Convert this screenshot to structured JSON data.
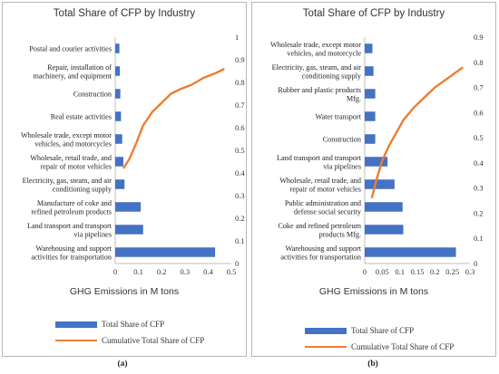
{
  "colors": {
    "bar": "#4472c4",
    "line": "#ed7d31",
    "grid": "#d9d9d9",
    "axis": "#bfbfbf"
  },
  "panels": [
    {
      "caption": "(a)",
      "legend": {
        "bar_label": "Total Share of CFP",
        "line_label": "Cumulative Total Share of CFP"
      },
      "chart_data": {
        "type": "bar",
        "orientation": "horizontal",
        "title": "Total Share of CFP by Industry",
        "xlabel": "GHG Emissions in M tons",
        "x_ticks": [
          "0",
          "0.1",
          "0.2",
          "0.3",
          "0.4",
          "0.5"
        ],
        "xlim": [
          0,
          0.5
        ],
        "secondary_y_ticks": [
          "0",
          "0.1",
          "0.2",
          "0.3",
          "0.4",
          "0.5",
          "0.6",
          "0.7",
          "0.8",
          "0.9",
          "1"
        ],
        "secondary_ylim": [
          0,
          1
        ],
        "legend_position": "bottom",
        "categories": [
          [
            "Warehousing and support",
            "activities for transportation"
          ],
          [
            "Land transport and transport",
            "via pipelines"
          ],
          [
            "Manufacture of coke and",
            "refined petroleum products"
          ],
          [
            "Electricity, gas, steam, and air",
            "conditioning supply"
          ],
          [
            "Wholesale, retail trade, and",
            "repair of motor vehicles"
          ],
          [
            "Wholesale trade, except motor",
            "vehicles, and motorcycles"
          ],
          [
            "Real estate activities"
          ],
          [
            "Construction"
          ],
          [
            "Repair, installation of",
            "machinery, and equipment"
          ],
          [
            "Postal and courier activities"
          ]
        ],
        "series": [
          {
            "name": "Total Share of CFP",
            "type": "bar",
            "values": [
              0.43,
              0.12,
              0.11,
              0.04,
              0.035,
              0.03,
              0.025,
              0.022,
              0.02,
              0.018
            ]
          },
          {
            "name": "Cumulative Total Share of CFP",
            "type": "line",
            "x": [
              0.035,
              0.06,
              0.09,
              0.12,
              0.16,
              0.2,
              0.24,
              0.28,
              0.33,
              0.38,
              0.43,
              0.47
            ],
            "y": [
              0.42,
              0.46,
              0.53,
              0.61,
              0.67,
              0.71,
              0.75,
              0.77,
              0.79,
              0.82,
              0.84,
              0.86
            ]
          }
        ]
      }
    },
    {
      "caption": "(b)",
      "legend": {
        "bar_label": "Total Share of CFP",
        "line_label": "Cumulative Total Share of CFP"
      },
      "chart_data": {
        "type": "bar",
        "orientation": "horizontal",
        "title": "Total Share of CFP by Industry",
        "xlabel": "GHG Emissions in M tons",
        "x_ticks": [
          "0",
          "0.05",
          "0.1",
          "0.15",
          "0.2",
          "0.25",
          "0.3"
        ],
        "xlim": [
          0,
          0.3
        ],
        "secondary_y_ticks": [
          "0",
          "0.1",
          "0.2",
          "0.3",
          "0.4",
          "0.5",
          "0.6",
          "0.7",
          "0.8",
          "0.9"
        ],
        "secondary_ylim": [
          0,
          0.9
        ],
        "legend_position": "bottom",
        "categories": [
          [
            "Warehousing and support",
            "activities for transportation"
          ],
          [
            "Coke and refined petroleum",
            "products Mfg."
          ],
          [
            "Public administration and",
            "defense social security"
          ],
          [
            "Wholesale, retail trade, and",
            "repair of motor vehicles"
          ],
          [
            "Land transport and transport",
            "via pipelines"
          ],
          [
            "Construction"
          ],
          [
            "Water transport"
          ],
          [
            "Rubber and plastic products",
            "Mfg."
          ],
          [
            "Electricity, gas, steam, and air",
            "conditioning supply"
          ],
          [
            "Wholesale trade, except motor",
            "vehicles, and motorcycle"
          ]
        ],
        "series": [
          {
            "name": "Total Share of CFP",
            "type": "bar",
            "values": [
              0.26,
              0.11,
              0.108,
              0.085,
              0.065,
              0.03,
              0.03,
              0.03,
              0.025,
              0.022
            ]
          },
          {
            "name": "Cumulative Total Share of CFP",
            "type": "line",
            "x": [
              0.02,
              0.035,
              0.05,
              0.07,
              0.09,
              0.11,
              0.14,
              0.17,
              0.2,
              0.24,
              0.28
            ],
            "y": [
              0.26,
              0.34,
              0.41,
              0.47,
              0.52,
              0.57,
              0.62,
              0.66,
              0.7,
              0.74,
              0.78
            ]
          }
        ]
      }
    }
  ]
}
